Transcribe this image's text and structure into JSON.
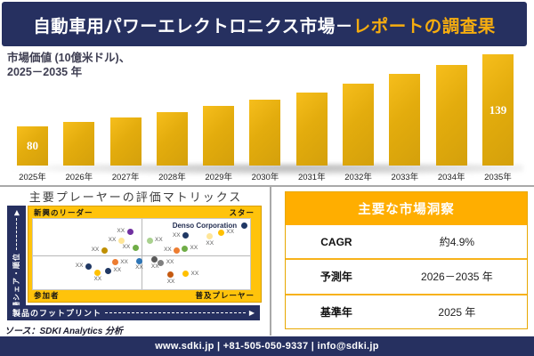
{
  "header": {
    "title_main": "自動車用パワーエレクトロニクス市場－",
    "title_accent": "レポートの調査果"
  },
  "chart": {
    "subtitle_line1": "市場価値 (10億米ドル)、",
    "subtitle_line2": "2025－2035 年"
  },
  "chart_data": [
    {
      "type": "bar",
      "title": "市場価値 (10億米ドル)、2025－2035 年",
      "categories": [
        "2025年",
        "2026年",
        "2027年",
        "2028年",
        "2029年",
        "2030年",
        "2031年",
        "2032年",
        "2033年",
        "2034年",
        "2035年"
      ],
      "values": [
        80,
        84,
        87,
        92,
        97,
        102,
        108,
        115,
        123,
        130,
        139
      ],
      "labeled_indices": [
        0,
        10
      ],
      "labeled_points": {
        "2025年": 80,
        "2035年": 139
      },
      "note": "Only 2025 (80) and 2035 (139) carry data labels in the figure; intermediate values estimated from bar heights",
      "ylabel": "10億米ドル",
      "axis_baseline_value": 48,
      "grid": false,
      "legend": false
    },
    {
      "type": "scatter",
      "title": "主要プレーヤーの評価マトリックス",
      "x_axis": "製品のフットプリント",
      "y_axis": "市場シェア・順位",
      "quadrants": [
        "新興のリーダー",
        "スター",
        "参加者",
        "普及プレーヤー"
      ],
      "coords_note": "x/y are percent of plot area; y measured from top (higher market share = smaller y)",
      "points": [
        {
          "x": 44.7,
          "y": 18,
          "color": "#7030A0",
          "label": "XX",
          "side": "left"
        },
        {
          "x": 40.7,
          "y": 31,
          "color": "#FFE699",
          "label": "XX",
          "side": "left"
        },
        {
          "x": 32.9,
          "y": 44.5,
          "color": "#BF8F00",
          "label": "XX",
          "side": "left"
        },
        {
          "x": 47.2,
          "y": 41,
          "color": "#70AD47",
          "label": "XX",
          "side": "left"
        },
        {
          "x": 53.7,
          "y": 31,
          "color": "#A9D18E",
          "label": "XX",
          "side": "right"
        },
        {
          "x": 70.3,
          "y": 24,
          "color": "#203864",
          "label": "XX",
          "side": "left"
        },
        {
          "x": 86.6,
          "y": 19,
          "color": "#FFC000",
          "label": "XX",
          "side": "right"
        },
        {
          "x": 81.3,
          "y": 25,
          "color": "#FFE699",
          "label": "XX",
          "side": "bottom"
        },
        {
          "x": 66.3,
          "y": 44.5,
          "color": "#ED7D31",
          "label": "XX",
          "side": "left"
        },
        {
          "x": 69.9,
          "y": 42,
          "color": "#70AD47",
          "label": "XX",
          "side": "right"
        },
        {
          "x": 97.2,
          "y": 9.5,
          "color": "#203864",
          "label": "Denso Corporation",
          "side": "left",
          "featured": true
        },
        {
          "x": 25.6,
          "y": 67.5,
          "color": "#203864",
          "label": "XX",
          "side": "left"
        },
        {
          "x": 37.8,
          "y": 61.5,
          "color": "#ED7D31",
          "label": "XX",
          "side": "right"
        },
        {
          "x": 48.8,
          "y": 60,
          "color": "#2E75B6",
          "label": "XX",
          "side": "bottom"
        },
        {
          "x": 29.7,
          "y": 76,
          "color": "#FFC000",
          "label": "XX",
          "side": "bottom"
        },
        {
          "x": 34.6,
          "y": 73.5,
          "color": "#203864",
          "label": "XX",
          "side": "right"
        },
        {
          "x": 56.1,
          "y": 58,
          "color": "#595959",
          "label": "XX",
          "side": "bottom"
        },
        {
          "x": 58.9,
          "y": 62.5,
          "color": "#808080",
          "label": "XX",
          "side": "right"
        },
        {
          "x": 63.4,
          "y": 79.5,
          "color": "#C55A11",
          "label": "XX",
          "side": "bottom"
        },
        {
          "x": 70.3,
          "y": 78,
          "color": "#FFC000",
          "label": "XX",
          "side": "right"
        }
      ]
    }
  ],
  "matrix": {
    "title": "主要プレーヤーの評価マトリックス",
    "quadrant_top_left": "新興のリーダー",
    "quadrant_top_right": "スター",
    "quadrant_bottom_left": "参加者",
    "quadrant_bottom_right": "普及プレーヤー",
    "y_axis": "市場シェア・順位",
    "x_axis": "製品のフットプリント",
    "featured_player": "Denso Corporation"
  },
  "insights": {
    "title": "主要な市場洞察",
    "rows": [
      {
        "label": "CAGR",
        "value": "約4.9%"
      },
      {
        "label": "予測年",
        "value": "2026－2035 年"
      },
      {
        "label": "基準年",
        "value": "2025 年"
      }
    ]
  },
  "source": "ソース：SDKI Analytics 分析",
  "footer": "www.sdki.jp | +81-505-050-9337 | info@sdki.jp",
  "colors": {
    "navy": "#263060",
    "gold_text": "#F5AC0F",
    "gold_header": "#FFAE00",
    "gold_frame": "#FFC30B",
    "bar_gold": "#E3AC0D"
  }
}
